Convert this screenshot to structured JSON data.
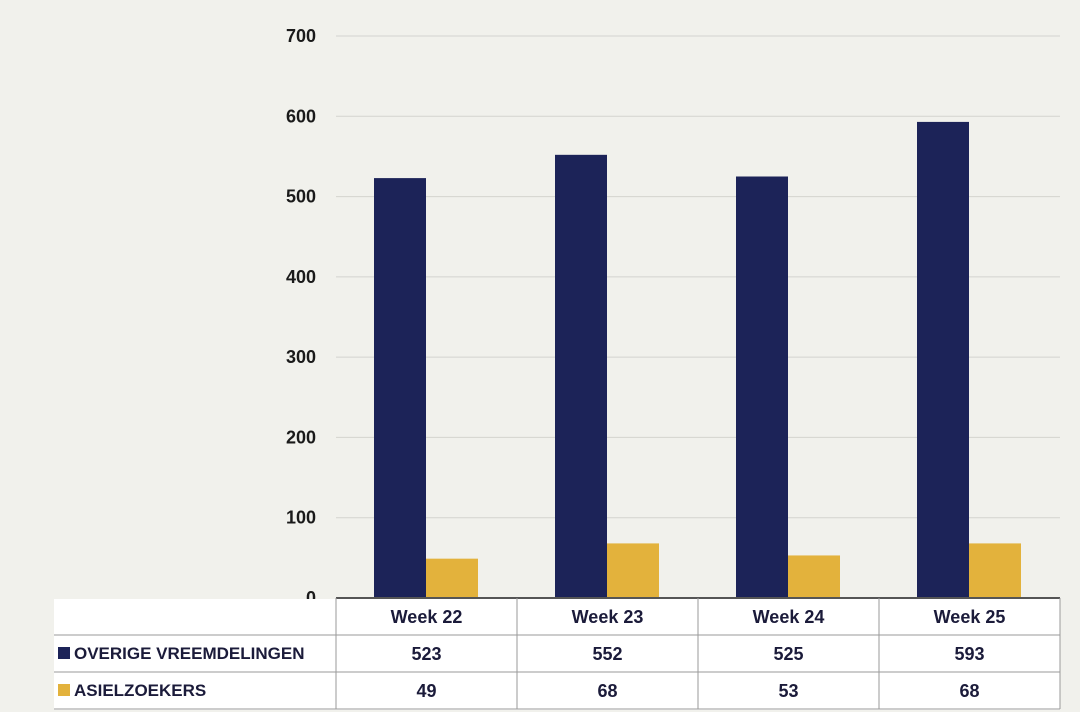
{
  "chart_data": {
    "type": "bar",
    "categories": [
      "Week 22",
      "Week 23",
      "Week 24",
      "Week 25"
    ],
    "series": [
      {
        "name": "OVERIGE VREEMDELINGEN",
        "values": [
          523,
          552,
          525,
          593
        ],
        "color": "#1c2358"
      },
      {
        "name": "ASIELZOEKERS",
        "values": [
          49,
          68,
          53,
          68
        ],
        "color": "#e3b23c"
      }
    ],
    "ylim": [
      0,
      700
    ],
    "yticks": [
      0,
      100,
      200,
      300,
      400,
      500,
      600,
      700
    ],
    "grid": true,
    "legend": "data-table"
  },
  "colors": {
    "background": "#f1f1ec",
    "gridline": "#d4d4cf",
    "axis": "#555555"
  }
}
